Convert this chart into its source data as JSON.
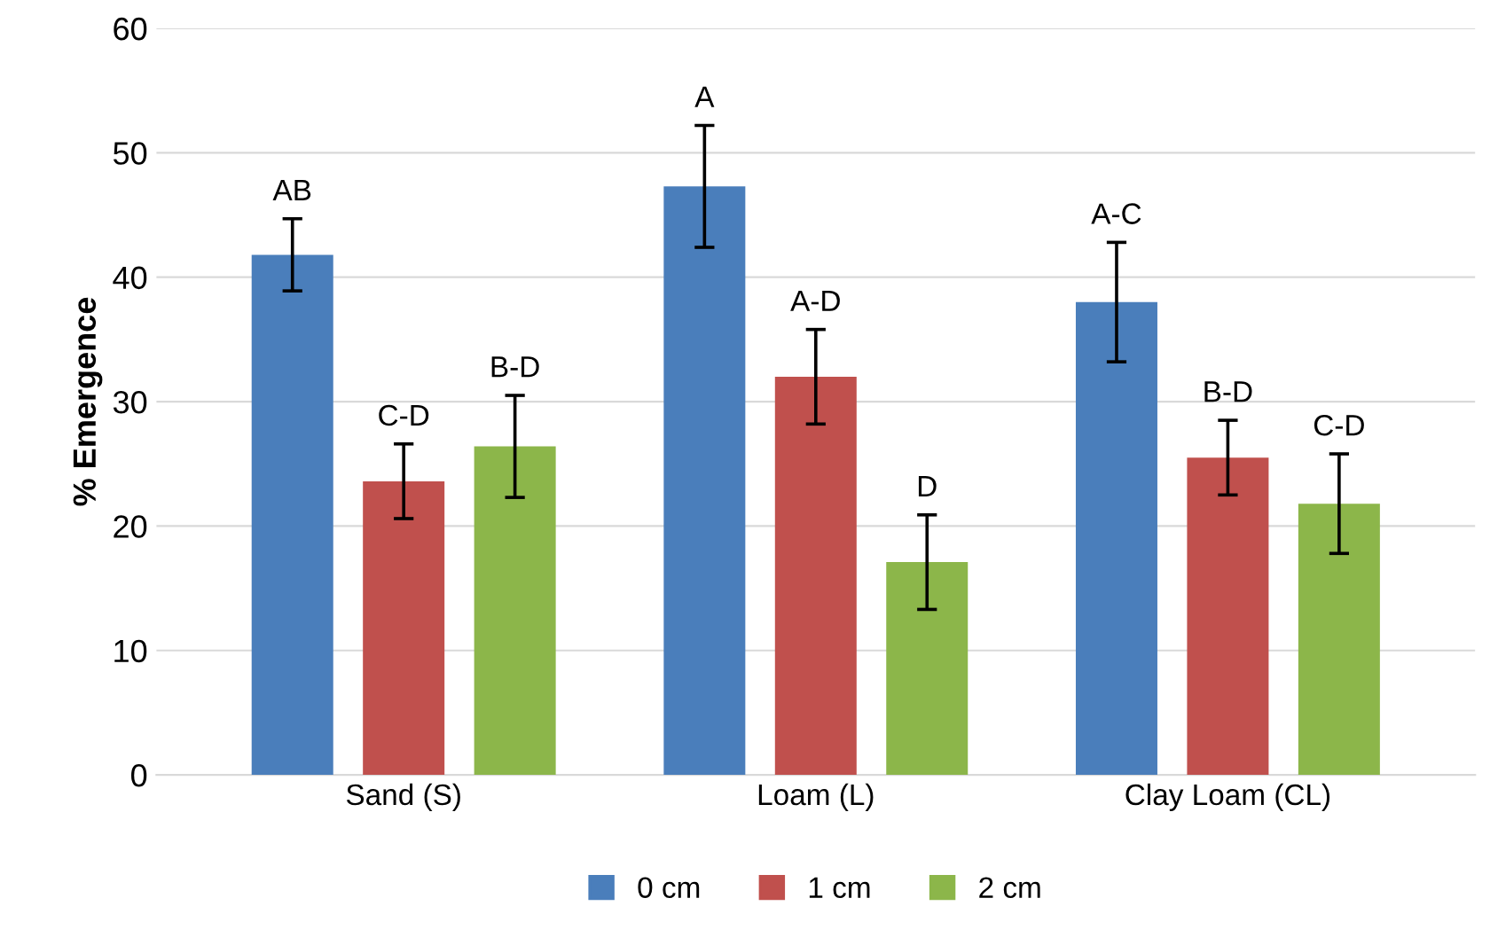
{
  "chart_data": {
    "type": "bar",
    "ylabel": "% Emergence",
    "categories": [
      "Sand (S)",
      "Loam (L)",
      "Clay Loam (CL)"
    ],
    "series": [
      {
        "name": "0 cm",
        "color": "#4a7ebb",
        "values": [
          41.8,
          47.3,
          38.0
        ],
        "errors": [
          2.9,
          4.9,
          4.8
        ],
        "value_labels": [
          "AB",
          "A",
          "A-C"
        ]
      },
      {
        "name": "1 cm",
        "color": "#c0504d",
        "values": [
          23.6,
          32.0,
          25.5
        ],
        "errors": [
          3.0,
          3.8,
          3.0
        ],
        "value_labels": [
          "C-D",
          "A-D",
          "B-D"
        ]
      },
      {
        "name": "2 cm",
        "color": "#8cb64a",
        "values": [
          26.4,
          17.1,
          21.8
        ],
        "errors": [
          4.1,
          3.8,
          4.0
        ],
        "value_labels": [
          "B-D",
          "D",
          "C-D"
        ]
      }
    ],
    "ylim": [
      0,
      60
    ],
    "yticks": [
      0,
      10,
      20,
      30,
      40,
      50,
      60
    ],
    "grid": "y",
    "legend": "bottom"
  }
}
